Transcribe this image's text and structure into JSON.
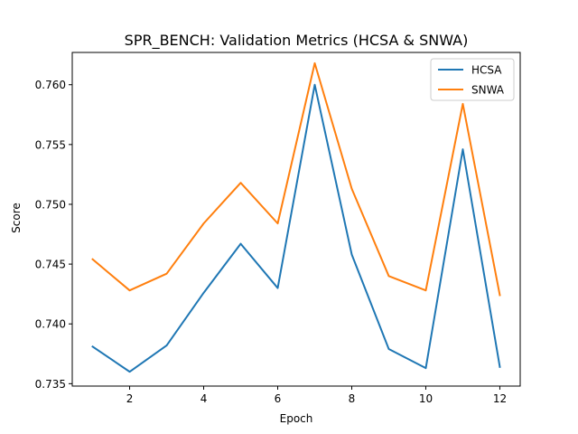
{
  "chart_data": {
    "type": "line",
    "title": "SPR_BENCH: Validation Metrics (HCSA & SNWA)",
    "xlabel": "Epoch",
    "ylabel": "Score",
    "x": [
      1,
      2,
      3,
      4,
      5,
      6,
      7,
      8,
      9,
      10,
      11,
      12
    ],
    "xlim": [
      0.45,
      12.55
    ],
    "ylim": [
      0.7348,
      0.7627
    ],
    "xticks": [
      2,
      4,
      6,
      8,
      10,
      12
    ],
    "xtick_labels": [
      "2",
      "4",
      "6",
      "8",
      "10",
      "12"
    ],
    "yticks": [
      0.735,
      0.74,
      0.745,
      0.75,
      0.755,
      0.76
    ],
    "ytick_labels": [
      "0.735",
      "0.740",
      "0.745",
      "0.750",
      "0.755",
      "0.760"
    ],
    "grid": false,
    "legend_position": "top-right",
    "series": [
      {
        "name": "HCSA",
        "color": "#1f77b4",
        "values": [
          0.7381,
          0.736,
          0.7382,
          0.7426,
          0.7467,
          0.743,
          0.76,
          0.7458,
          0.7379,
          0.7363,
          0.7546,
          0.7364
        ]
      },
      {
        "name": "SNWA",
        "color": "#ff7f0e",
        "values": [
          0.7454,
          0.7428,
          0.7442,
          0.7484,
          0.7518,
          0.7484,
          0.7618,
          0.7513,
          0.744,
          0.7428,
          0.7584,
          0.7424
        ]
      }
    ]
  }
}
